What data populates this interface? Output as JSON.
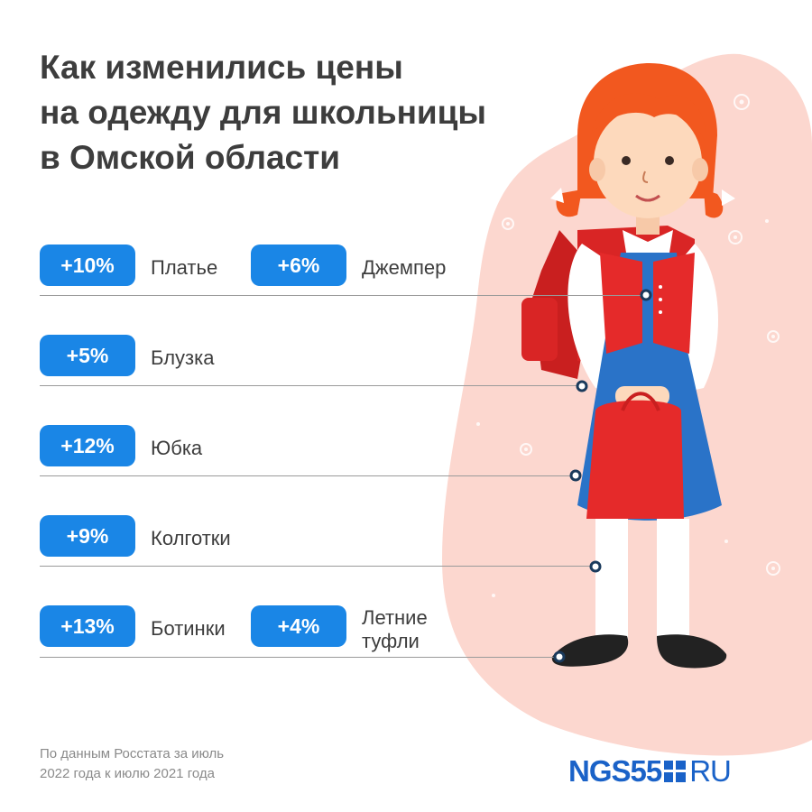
{
  "title": {
    "line1": "Как изменились цены",
    "line2": "на одежду для школьницы",
    "line3": "в Омской области"
  },
  "items": [
    {
      "change": "+10%",
      "label": "Платье"
    },
    {
      "change": "+6%",
      "label": "Джемпер"
    },
    {
      "change": "+5%",
      "label": "Блузка"
    },
    {
      "change": "+12%",
      "label": "Юбка"
    },
    {
      "change": "+9%",
      "label": "Колготки"
    },
    {
      "change": "+13%",
      "label": "Ботинки"
    },
    {
      "change": "+4%",
      "label_line1": "Летние",
      "label_line2": "туфли"
    }
  ],
  "footnote": {
    "line1": "По данным Росстата за июль",
    "line2": "2022 года к июлю 2021 года"
  },
  "logo": {
    "left": "NGS55",
    "right": "RU"
  },
  "colors": {
    "accent": "#1a86e6",
    "blob": "#fcd7cf",
    "vest": "#e52a2a",
    "dress": "#2a73c8",
    "hair": "#f2581f"
  }
}
